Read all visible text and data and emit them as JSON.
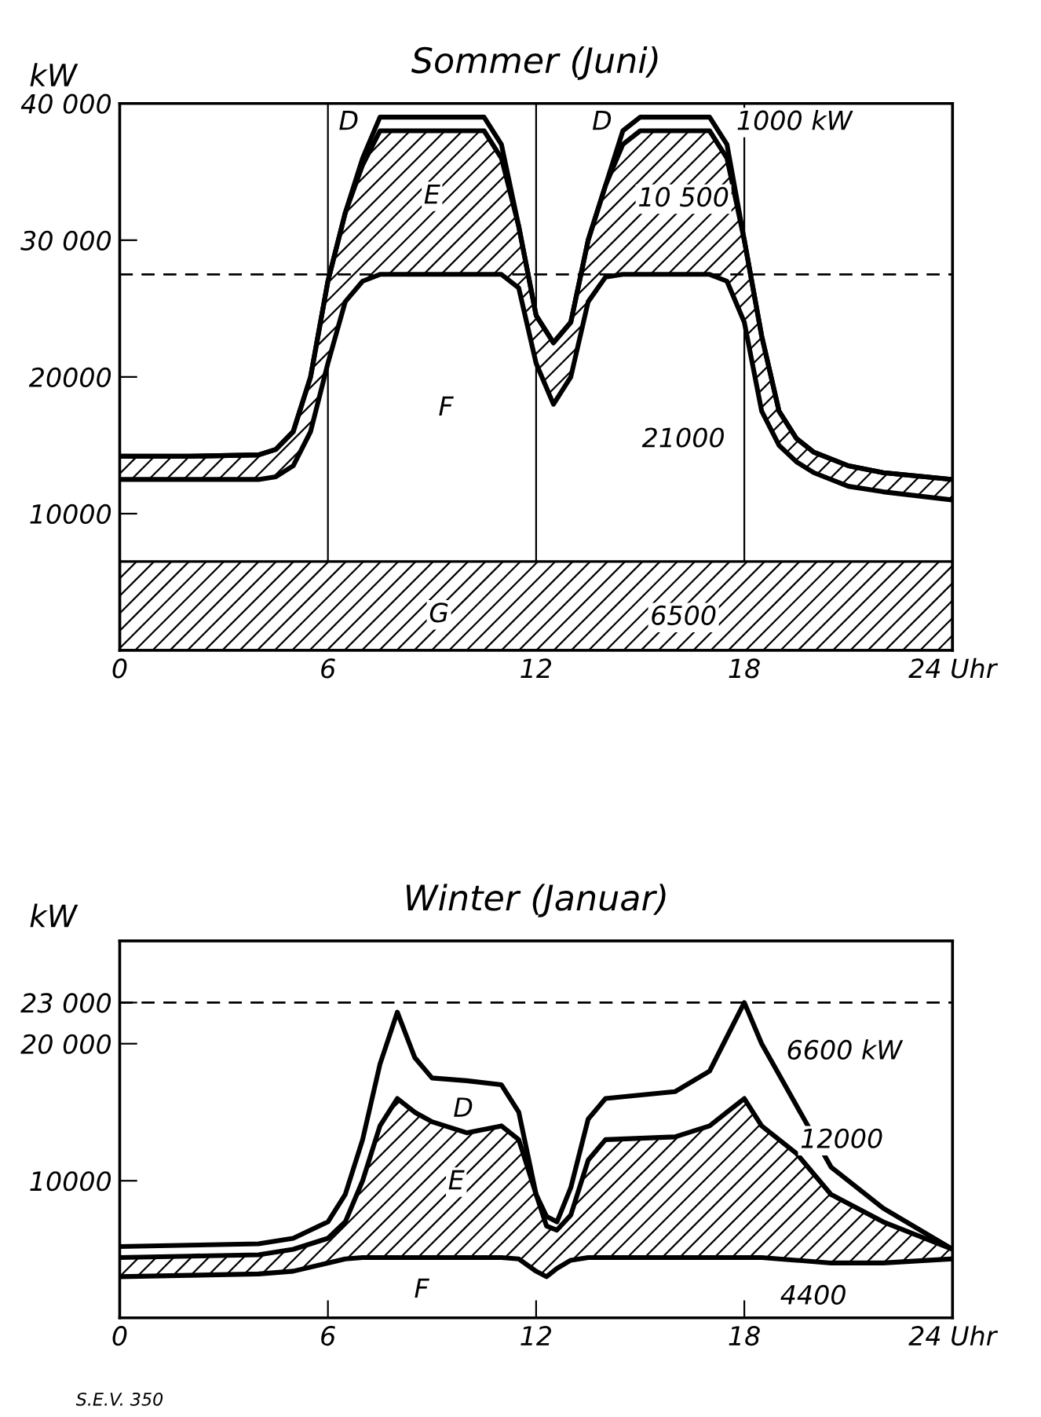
{
  "chart_data": [
    {
      "type": "line",
      "title": "Sommer (Juni)",
      "ylabel": "kW",
      "ylim": [
        0,
        40000
      ],
      "xlim": [
        0,
        24
      ],
      "yticks": [
        {
          "value": 10000,
          "label": "10000"
        },
        {
          "value": 20000,
          "label": "20000"
        },
        {
          "value": 30000,
          "label": "30 000"
        },
        {
          "value": 40000,
          "label": "40 000"
        }
      ],
      "xticks": [
        0,
        6,
        12,
        18,
        {
          "value": 24,
          "label": "24 Uhr"
        }
      ],
      "grid": "x",
      "x": [
        0,
        2,
        4,
        4.5,
        5,
        5.5,
        6,
        6.5,
        7,
        7.5,
        8,
        10.5,
        11,
        11.5,
        12,
        12.5,
        13,
        13.5,
        14,
        14.5,
        15,
        17,
        17.5,
        18,
        18.5,
        19,
        19.5,
        20,
        21,
        22,
        24
      ],
      "series": [
        {
          "color": "#000000",
          "values": [
            12500,
            12500,
            12500,
            12700,
            13500,
            16000,
            21000,
            25500,
            27000,
            27500,
            27500,
            27500,
            27500,
            26500,
            21000,
            18000,
            20000,
            25500,
            27300,
            27500,
            27500,
            27500,
            27000,
            24000,
            17500,
            15000,
            13800,
            13000,
            12000,
            11600,
            11000
          ]
        },
        {
          "color": "#000000",
          "values": [
            14200,
            14200,
            14300,
            14700,
            16000,
            20000,
            27000,
            32000,
            35500,
            38000,
            38000,
            38000,
            36000,
            31000,
            24500,
            22500,
            24000,
            30000,
            34000,
            37000,
            38000,
            38000,
            36000,
            30000,
            23000,
            17500,
            15500,
            14500,
            13500,
            13000,
            12500
          ],
          "lower": [
            12500,
            12500,
            12500,
            12700,
            13500,
            16000,
            21000,
            25500,
            27000,
            27500,
            27500,
            27500,
            27500,
            26500,
            21000,
            18000,
            20000,
            25500,
            27300,
            27500,
            27500,
            27500,
            27000,
            24000,
            17500,
            15000,
            13800,
            13000,
            12000,
            11600,
            11000
          ],
          "upper": [
            14200,
            14200,
            14300,
            14700,
            16000,
            20000,
            27000,
            32000,
            35500,
            38000,
            38000,
            38000,
            36000,
            31000,
            24500,
            22500,
            24000,
            30000,
            34000,
            37000,
            38000,
            38000,
            36000,
            30000,
            23000,
            17500,
            15500,
            14500,
            13500,
            13000,
            12500
          ]
        },
        {
          "color": "#000000",
          "values": [
            14200,
            14200,
            14300,
            14700,
            16000,
            20000,
            27000,
            32000,
            36000,
            39000,
            39000,
            39000,
            37000,
            31000,
            24500,
            22500,
            24000,
            30000,
            34000,
            38000,
            39000,
            39000,
            37000,
            30000,
            23000,
            17500,
            15500,
            14500,
            13500,
            13000,
            12500
          ]
        }
      ],
      "bands": [
        {
          "axis": "y",
          "from": 0,
          "to": 6500,
          "color": "#000000"
        }
      ],
      "ref_lines": [
        {
          "axis": "y",
          "value": 27500,
          "line_style": "dashed",
          "color": "#000000"
        }
      ],
      "annotations": [
        {
          "text": "D",
          "x": 6.6,
          "y": 38600
        },
        {
          "text": "D",
          "x": 13.9,
          "y": 38600
        },
        {
          "text": "E",
          "x": 9.0,
          "y": 33200
        },
        {
          "text": "F",
          "x": 9.4,
          "y": 17700
        },
        {
          "text": "G",
          "x": 9.2,
          "y": 2600
        },
        "1000 kW",
        "10 500",
        "21000",
        "6500"
      ]
    },
    {
      "type": "line",
      "title": "Winter (Januar)",
      "ylabel": "kW",
      "ylim": [
        0,
        27500
      ],
      "xlim": [
        0,
        24
      ],
      "yticks": [
        {
          "value": 10000,
          "label": "10000"
        },
        {
          "value": 20000,
          "label": "20 000"
        },
        {
          "value": 23000,
          "label": "23 000"
        }
      ],
      "xticks": [
        0,
        6,
        12,
        18,
        {
          "value": 24,
          "label": "24 Uhr"
        }
      ],
      "x": [
        0,
        2,
        4,
        5,
        6,
        6.5,
        7,
        7.5,
        8,
        8.5,
        9,
        10,
        11,
        11.5,
        12,
        12.3,
        12.6,
        13,
        13.5,
        14,
        16,
        17,
        17.5,
        18,
        18.5,
        19.5,
        20.5,
        22,
        24
      ],
      "series": [
        {
          "color": "#000000",
          "values": [
            3000,
            3100,
            3200,
            3400,
            4000,
            4300,
            4400,
            4400,
            4400,
            4400,
            4400,
            4400,
            4400,
            4300,
            3400,
            3000,
            3600,
            4200,
            4400,
            4400,
            4400,
            4400,
            4400,
            4400,
            4400,
            4200,
            4000,
            4000,
            4300
          ]
        },
        {
          "color": "#000000",
          "values": [
            4400,
            4500,
            4600,
            5000,
            5800,
            7000,
            10000,
            14000,
            16000,
            15000,
            14300,
            13500,
            14000,
            13000,
            9000,
            6700,
            6400,
            7500,
            11500,
            13000,
            13200,
            14000,
            15000,
            16000,
            14000,
            12000,
            9000,
            7000,
            5000
          ],
          "lower": [
            3000,
            3100,
            3200,
            3400,
            4000,
            4300,
            4400,
            4400,
            4400,
            4400,
            4400,
            4400,
            4400,
            4300,
            3400,
            3000,
            3600,
            4200,
            4400,
            4400,
            4400,
            4400,
            4400,
            4400,
            4400,
            4200,
            4000,
            4000,
            4300
          ],
          "upper": [
            4400,
            4500,
            4600,
            5000,
            5800,
            7000,
            10000,
            14000,
            16000,
            15000,
            14300,
            13500,
            14000,
            13000,
            9000,
            6700,
            6400,
            7500,
            11500,
            13000,
            13200,
            14000,
            15000,
            16000,
            14000,
            12000,
            9000,
            7000,
            5000
          ]
        },
        {
          "color": "#000000",
          "values": [
            5200,
            5300,
            5400,
            5800,
            7000,
            9000,
            13000,
            18500,
            22300,
            19000,
            17500,
            17300,
            17000,
            15000,
            9000,
            7400,
            7000,
            9500,
            14500,
            16000,
            16500,
            18000,
            20500,
            23000,
            20000,
            15500,
            11000,
            8000,
            5000
          ]
        }
      ],
      "ref_lines": [
        {
          "axis": "y",
          "value": 23000,
          "line_style": "dashed",
          "color": "#000000"
        }
      ],
      "annotations": [
        {
          "text": "D",
          "x": 9.9,
          "y": 15200
        },
        {
          "text": "E",
          "x": 9.7,
          "y": 9900
        },
        {
          "text": "F",
          "x": 8.7,
          "y": 2000
        },
        "6600 kW",
        "12000",
        "4400",
        "S.E.V. 350"
      ]
    }
  ]
}
